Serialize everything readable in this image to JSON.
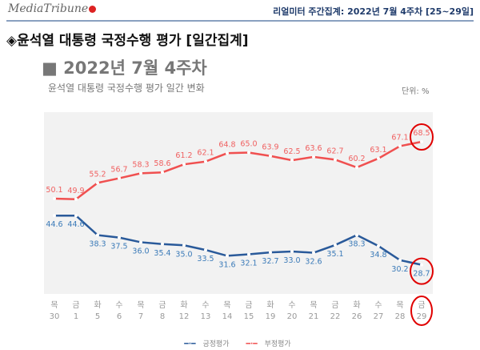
{
  "header": {
    "logo_text": "MediaTribune",
    "report_label": "리얼미터 주간집계: 2022년 7월 4주차 [25~29일]"
  },
  "title": "◈윤석열 대통령 국정수행 평가 [일간집계]",
  "subtitle": "■ 2022년 7월 4주차",
  "colors": {
    "positive": "#2a5a9a",
    "negative": "#f05050",
    "highlight": "#e00000",
    "plot_bg": "#f2f2f2"
  },
  "chart_data": {
    "type": "line",
    "title": "윤석열 대통령 국정수행 평가 일간 변화",
    "unit": "단위: %",
    "categories_day": [
      "목",
      "금",
      "화",
      "수",
      "목",
      "금",
      "화",
      "수",
      "목",
      "금",
      "화",
      "수",
      "목",
      "금",
      "화",
      "수",
      "목",
      "금"
    ],
    "categories": [
      "30",
      "1",
      "5",
      "6",
      "7",
      "8",
      "12",
      "13",
      "14",
      "15",
      "19",
      "20",
      "21",
      "22",
      "26",
      "27",
      "28",
      "29"
    ],
    "series": [
      {
        "name": "긍정평가",
        "values": [
          44.6,
          44.6,
          38.3,
          37.5,
          36.0,
          35.4,
          35.0,
          33.5,
          31.6,
          32.1,
          32.7,
          33.0,
          32.6,
          35.1,
          38.3,
          34.8,
          30.2,
          28.7
        ]
      },
      {
        "name": "부정평가",
        "values": [
          50.1,
          49.9,
          55.2,
          56.7,
          58.3,
          58.6,
          61.2,
          62.1,
          64.8,
          65.0,
          63.9,
          62.5,
          63.6,
          62.7,
          60.2,
          63.1,
          67.1,
          68.5
        ]
      }
    ],
    "highlighted": "last point circled in red",
    "grid": false,
    "legend": "bottom"
  }
}
